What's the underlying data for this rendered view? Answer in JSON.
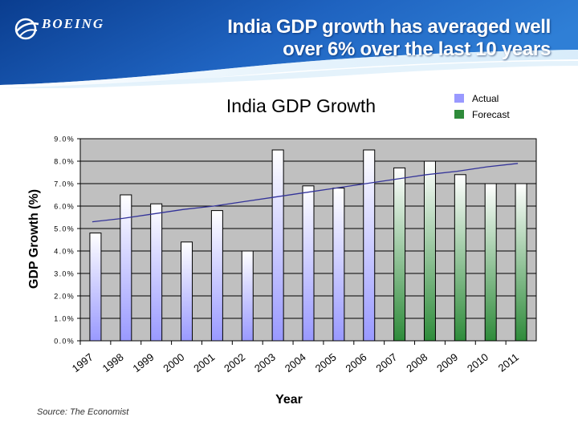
{
  "header": {
    "logo_text": "BOEING",
    "title_line1": "India GDP growth has averaged well",
    "title_line2": "over 6% over the last 10 years",
    "banner_colors": [
      "#0a3d8f",
      "#2f7fd6",
      "#bfe0f7"
    ]
  },
  "footer": {
    "source": "Source:  The Economist"
  },
  "chart_data": {
    "type": "bar",
    "title": "India GDP Growth",
    "xlabel": "Year",
    "ylabel": "GDP Growth (%)",
    "ylim": [
      0,
      9
    ],
    "yticks": [
      "0.0%",
      "1.0%",
      "2.0%",
      "3.0%",
      "4.0%",
      "5.0%",
      "6.0%",
      "7.0%",
      "8.0%",
      "9.0%"
    ],
    "grid": true,
    "legend_position": "top-right",
    "categories": [
      "1997",
      "1998",
      "1999",
      "2000",
      "2001",
      "2002",
      "2003",
      "2004",
      "2005",
      "2006",
      "2007",
      "2008",
      "2009",
      "2010",
      "2011"
    ],
    "series": [
      {
        "name": "Actual",
        "color": "#9999ff",
        "values": [
          4.8,
          6.5,
          6.1,
          4.4,
          5.8,
          4.0,
          8.5,
          6.9,
          6.8,
          8.5,
          null,
          null,
          null,
          null,
          null
        ]
      },
      {
        "name": "Forecast",
        "color": "#2e8b3a",
        "values": [
          null,
          null,
          null,
          null,
          null,
          null,
          null,
          null,
          null,
          null,
          7.7,
          8.0,
          7.4,
          7.0,
          7.0
        ]
      }
    ],
    "trendline": {
      "color": "#333399",
      "values": [
        5.3,
        5.45,
        5.65,
        5.85,
        6.0,
        6.2,
        6.4,
        6.6,
        6.8,
        7.0,
        7.2,
        7.4,
        7.55,
        7.75,
        7.9
      ]
    }
  }
}
